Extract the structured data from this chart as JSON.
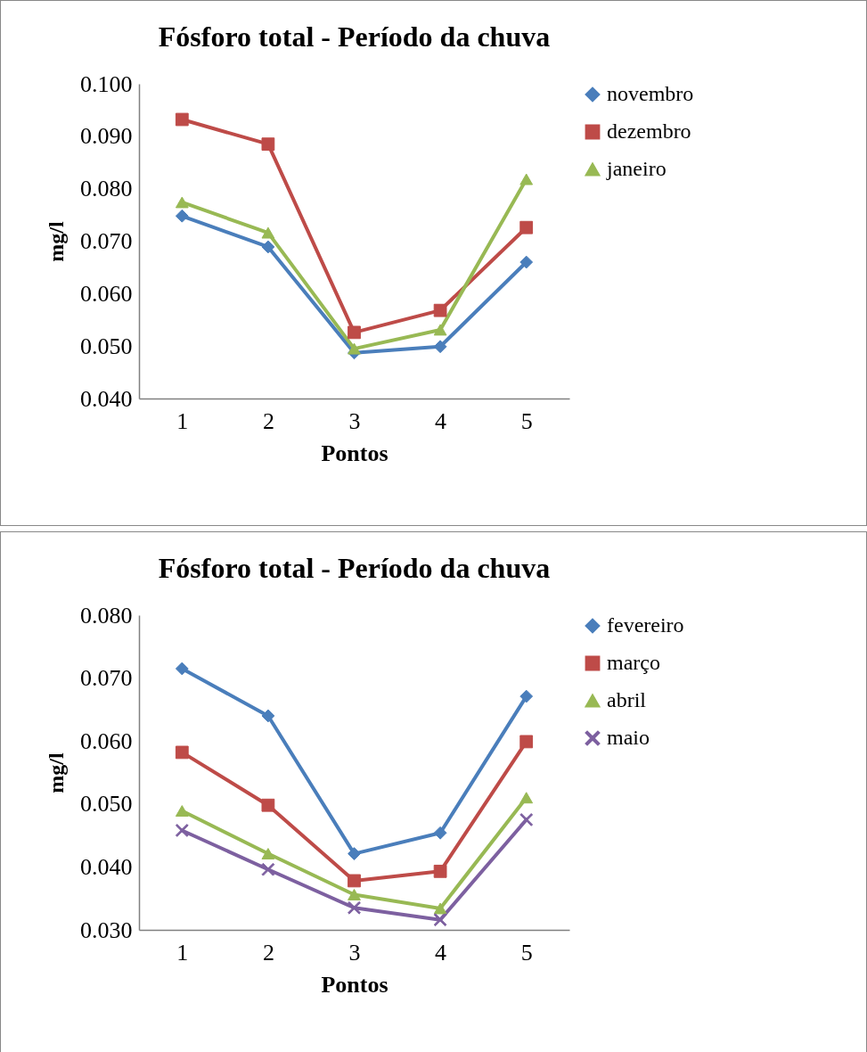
{
  "chart_data": [
    {
      "type": "line",
      "title": "Fósforo total  - Período da chuva",
      "xlabel": "Pontos",
      "ylabel": "mg/l",
      "categories": [
        "1",
        "2",
        "3",
        "4",
        "5"
      ],
      "series": [
        {
          "name": "novembro",
          "color": "#4a7ebb",
          "marker": "diamond",
          "values": [
            0.0748,
            0.0689,
            0.0487,
            0.0499,
            0.066
          ]
        },
        {
          "name": "dezembro",
          "color": "#be4b48",
          "marker": "square",
          "values": [
            0.0932,
            0.0885,
            0.0526,
            0.0568,
            0.0726
          ]
        },
        {
          "name": "janeiro",
          "color": "#98b954",
          "marker": "triangle",
          "values": [
            0.0774,
            0.0716,
            0.0495,
            0.0531,
            0.0818
          ]
        }
      ],
      "ylim": [
        0.04,
        0.1
      ],
      "yticks": [
        {
          "value": 0.04,
          "label": "0.040"
        },
        {
          "value": 0.05,
          "label": "0.050"
        },
        {
          "value": 0.06,
          "label": "0.060"
        },
        {
          "value": 0.07,
          "label": "0.070"
        },
        {
          "value": 0.08,
          "label": "0.080"
        },
        {
          "value": 0.09,
          "label": "0.090"
        },
        {
          "value": 0.1,
          "label": "0.100"
        }
      ],
      "legend": "right",
      "line_style": "solid"
    },
    {
      "type": "line",
      "title": "Fósforo total  - Período da chuva",
      "xlabel": "Pontos",
      "ylabel": "mg/l",
      "categories": [
        "1",
        "2",
        "3",
        "4",
        "5"
      ],
      "series": [
        {
          "name": "fevereiro",
          "color": "#4a7ebb",
          "marker": "diamond",
          "values": [
            0.0715,
            0.064,
            0.0421,
            0.0454,
            0.0671
          ]
        },
        {
          "name": "março",
          "color": "#be4b48",
          "marker": "square",
          "values": [
            0.0582,
            0.0498,
            0.0378,
            0.0393,
            0.0599
          ]
        },
        {
          "name": "abril",
          "color": "#98b954",
          "marker": "triangle",
          "values": [
            0.0489,
            0.0421,
            0.0356,
            0.0334,
            0.051
          ]
        },
        {
          "name": "maio",
          "color": "#7d60a0",
          "marker": "cross",
          "values": [
            0.0458,
            0.0396,
            0.0335,
            0.0316,
            0.0475
          ]
        }
      ],
      "ylim": [
        0.03,
        0.08
      ],
      "yticks": [
        {
          "value": 0.03,
          "label": "0.030"
        },
        {
          "value": 0.04,
          "label": "0.040"
        },
        {
          "value": 0.05,
          "label": "0.050"
        },
        {
          "value": 0.06,
          "label": "0.060"
        },
        {
          "value": 0.07,
          "label": "0.070"
        },
        {
          "value": 0.08,
          "label": "0.080"
        }
      ],
      "legend": "right",
      "line_style": "solid"
    }
  ]
}
